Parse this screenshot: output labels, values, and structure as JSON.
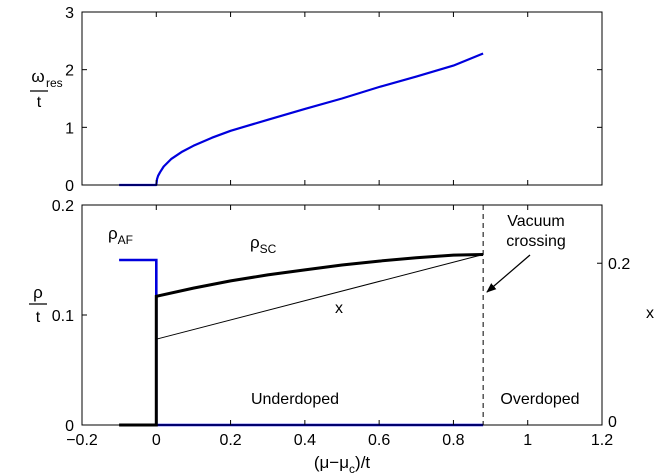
{
  "chart_data": [
    {
      "type": "line",
      "xlim": [
        -0.2,
        1.2
      ],
      "ylim": [
        0,
        3
      ],
      "yticks": [
        0,
        1,
        2,
        3
      ],
      "ylabel_num": "ω",
      "ylabel_sub": "res",
      "ylabel_den": "t",
      "grid": false,
      "series": [
        {
          "color": "#0000dd",
          "points": [
            [
              -0.1,
              0
            ],
            [
              0,
              0
            ],
            [
              0.002,
              0.1
            ],
            [
              0.005,
              0.16
            ],
            [
              0.01,
              0.22
            ],
            [
              0.02,
              0.32
            ],
            [
              0.04,
              0.45
            ],
            [
              0.07,
              0.58
            ],
            [
              0.1,
              0.68
            ],
            [
              0.15,
              0.82
            ],
            [
              0.2,
              0.94
            ],
            [
              0.3,
              1.13
            ],
            [
              0.4,
              1.32
            ],
            [
              0.5,
              1.5
            ],
            [
              0.6,
              1.7
            ],
            [
              0.7,
              1.88
            ],
            [
              0.8,
              2.07
            ],
            [
              0.88,
              2.28
            ]
          ]
        }
      ]
    },
    {
      "type": "line",
      "xlim": [
        -0.2,
        1.2
      ],
      "ylim": [
        0,
        0.2
      ],
      "xticks": [
        -0.2,
        0,
        0.2,
        0.4,
        0.6,
        0.8,
        1,
        1.2
      ],
      "xtick_labels": [
        "−0.2",
        "0",
        "0.2",
        "0.4",
        "0.6",
        "0.8",
        "1",
        "1.2"
      ],
      "yticks": [
        0,
        0.1,
        0.2
      ],
      "ylabel_num": "ρ",
      "ylabel_den": "t",
      "xlabel": "(μ−μ_c)/t",
      "xlabel_main": "(μ−μ",
      "xlabel_sub": "c",
      "xlabel_tail": ")/t",
      "right_axis": {
        "label": "x",
        "ticks": [
          0,
          0.2
        ],
        "tick_labels": [
          "0",
          "0.2"
        ],
        "ylim": [
          0,
          0.272
        ]
      },
      "grid": false,
      "vline": {
        "x": 0.88,
        "style": "dashed"
      },
      "series": [
        {
          "color": "#0000dd",
          "width": "thick",
          "points": [
            [
              -0.1,
              0.15
            ],
            [
              0,
              0.15
            ],
            [
              0,
              0
            ],
            [
              0.88,
              0
            ]
          ]
        },
        {
          "color": "#000000",
          "width": "heavy",
          "points": [
            [
              -0.1,
              0
            ],
            [
              0,
              0
            ],
            [
              0,
              0.117
            ],
            [
              0.1,
              0.1245
            ],
            [
              0.2,
              0.131
            ],
            [
              0.3,
              0.1365
            ],
            [
              0.4,
              0.141
            ],
            [
              0.5,
              0.1455
            ],
            [
              0.6,
              0.149
            ],
            [
              0.7,
              0.152
            ],
            [
              0.8,
              0.1545
            ],
            [
              0.88,
              0.155
            ]
          ]
        },
        {
          "color": "#000000",
          "width": "thin",
          "points": [
            [
              0,
              0.078
            ],
            [
              0.88,
              0.155
            ]
          ]
        }
      ],
      "annotations": {
        "rho_af": "ρ",
        "rho_af_sub": "AF",
        "rho_sc": "ρ",
        "rho_sc_sub": "SC",
        "x_curve": "x",
        "vacuum_line1": "Vacuum",
        "vacuum_line2": "crossing",
        "underdoped": "Underdoped",
        "overdoped": "Overdoped"
      }
    }
  ]
}
